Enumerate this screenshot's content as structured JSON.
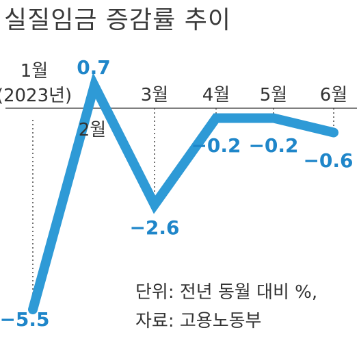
{
  "title": "실질임금 증감률 추이",
  "chart_data": {
    "type": "line",
    "categories": [
      "1월\n(2023년)",
      "2월",
      "3월",
      "4월",
      "5월",
      "6월"
    ],
    "values": [
      -5.5,
      0.7,
      -2.6,
      -0.2,
      -0.2,
      -0.6
    ],
    "value_labels": [
      "−5.5",
      "0.7",
      "−2.6",
      "−0.2",
      "−0.2",
      "−0.6"
    ],
    "ylim": [
      -5.5,
      0.7
    ],
    "baseline": 0,
    "line_color": "#2e9ad6",
    "label_color": "#1f86c9"
  },
  "notes": {
    "unit": "단위: 전년 동월 대비 %,",
    "source": "자료: 고용노동부"
  }
}
